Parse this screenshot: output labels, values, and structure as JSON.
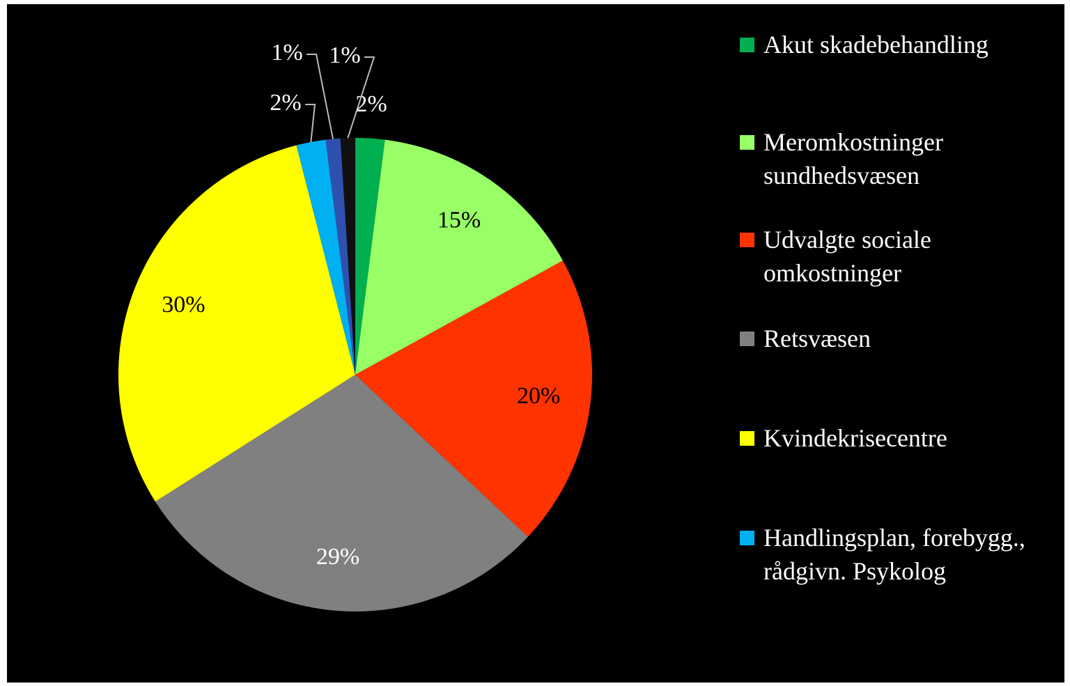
{
  "chart_data": {
    "type": "pie",
    "categories": [
      "Akut skadebehandling",
      "Meromkostninger sundhedsvæsen",
      "Udvalgte sociale omkostninger",
      "Retsvæsen",
      "Kvindekrisecentre",
      "Handlingsplan, forebygg., rådgivn. Psykolog",
      null,
      null
    ],
    "values": [
      2,
      15,
      20,
      29,
      30,
      2,
      1,
      1
    ],
    "value_labels": [
      "2%",
      "15%",
      "20%",
      "29%",
      "30%",
      "2%",
      "1%",
      "1%"
    ],
    "colors": [
      "#00b050",
      "#99ff66",
      "#ff3300",
      "#808080",
      "#ffff00",
      "#00b0f0",
      "#3050b0",
      "#101010"
    ],
    "legend": "right"
  }
}
